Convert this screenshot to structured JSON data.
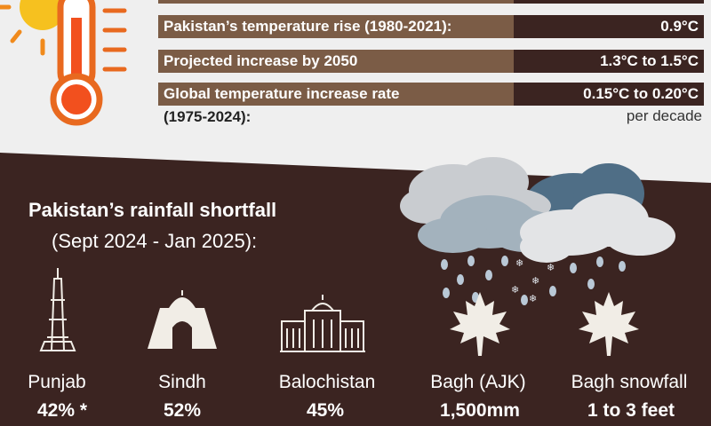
{
  "stats": [
    {
      "label": "Pakistan’s temperature rise (1980-2021):",
      "value": "0.9°C"
    },
    {
      "label": "Projected increase by 2050",
      "value": "1.3°C to 1.5°C"
    },
    {
      "label": "Global temperature increase rate",
      "label_cont": "(1975-2024):",
      "value": "0.15°C to 0.20°C",
      "value_sub": "per decade"
    }
  ],
  "rainfall": {
    "title": "Pakistan’s rainfall shortfall",
    "subtitle": "(Sept 2024 - Jan 2025):",
    "regions": [
      {
        "name": "Punjab",
        "value": "42% *",
        "icon": "minar-icon"
      },
      {
        "name": "Sindh",
        "value": "52%",
        "icon": "mausoleum-icon"
      },
      {
        "name": "Balochistan",
        "value": "45%",
        "icon": "building-icon"
      },
      {
        "name": "Bagh (AJK)",
        "value": "1,500mm",
        "icon": "maple-leaf-icon"
      },
      {
        "name": "Bagh snowfall",
        "value": "1 to 3 feet",
        "icon": "maple-leaf-icon"
      }
    ]
  },
  "colors": {
    "brown": "#7b5c46",
    "dark": "#3b2421",
    "light": "#efefef"
  }
}
